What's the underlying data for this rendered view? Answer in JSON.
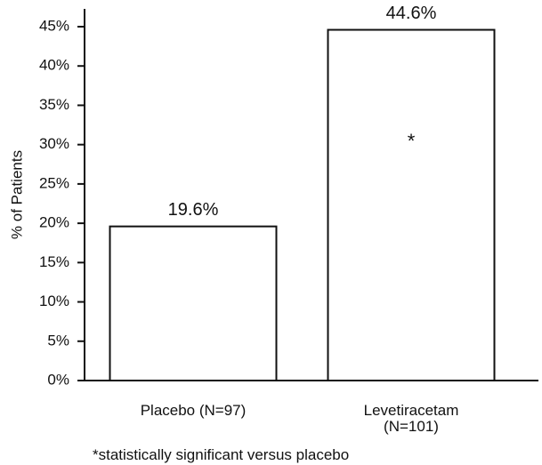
{
  "chart_data": {
    "type": "bar",
    "categories": [
      "Placebo (N=97)",
      "Levetiracetam\n(N=101)"
    ],
    "values": [
      19.6,
      44.6
    ],
    "value_labels": [
      "19.6%",
      "44.6%"
    ],
    "color": "#ffffff",
    "y_label": "% of Patients",
    "ylim": [
      0,
      45
    ],
    "yticks": [
      {
        "value": 0,
        "label": "0%"
      },
      {
        "value": 5,
        "label": "5%"
      },
      {
        "value": 10,
        "label": "10%"
      },
      {
        "value": 15,
        "label": "15%"
      },
      {
        "value": 20,
        "label": "20%"
      },
      {
        "value": 25,
        "label": "25%"
      },
      {
        "value": 30,
        "label": "30%"
      },
      {
        "value": 35,
        "label": "35%"
      },
      {
        "value": 40,
        "label": "40%"
      },
      {
        "value": 45,
        "label": "45%"
      }
    ],
    "annotations": [
      "*"
    ],
    "footnote": "*statistically significant versus placebo",
    "grid": false
  }
}
